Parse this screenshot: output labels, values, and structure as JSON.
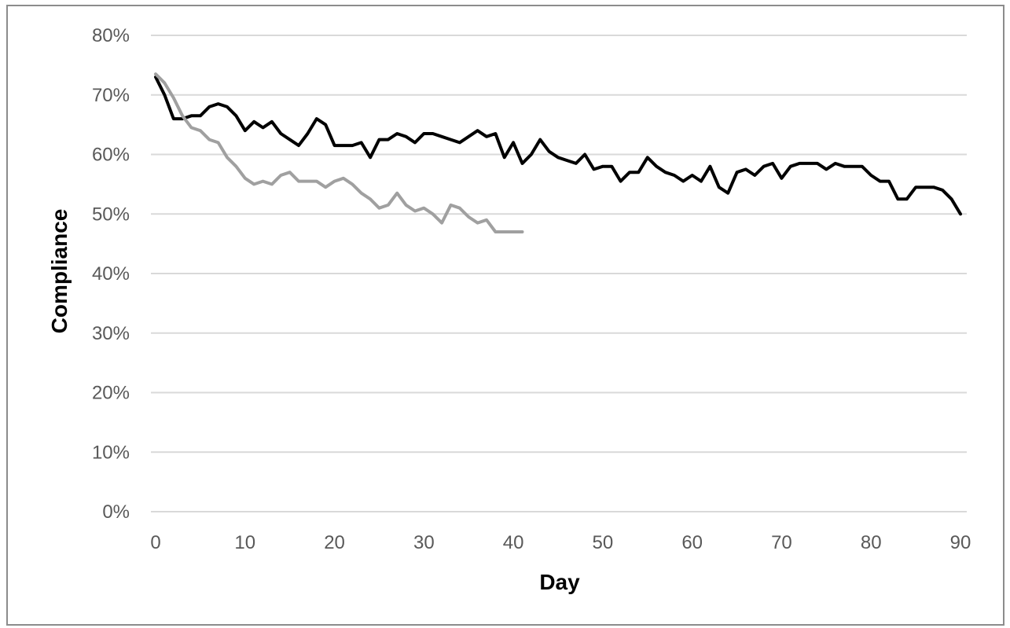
{
  "chart_data": {
    "type": "line",
    "title": "",
    "xlabel": "Day",
    "ylabel": "Compliance",
    "xlim": [
      0,
      90
    ],
    "ylim": [
      0,
      0.8
    ],
    "grid": "horizontal",
    "legend": "none",
    "x_ticks": [
      "0",
      "10",
      "20",
      "30",
      "40",
      "50",
      "60",
      "70",
      "80",
      "90"
    ],
    "y_ticks": [
      "0%",
      "10%",
      "20%",
      "30%",
      "40%",
      "50%",
      "60%",
      "70%",
      "80%"
    ],
    "series": [
      {
        "color": "#000000",
        "x": [
          0,
          1,
          2,
          3,
          4,
          5,
          6,
          7,
          8,
          9,
          10,
          11,
          12,
          13,
          14,
          15,
          16,
          17,
          18,
          19,
          20,
          21,
          22,
          23,
          24,
          25,
          26,
          27,
          28,
          29,
          30,
          31,
          32,
          33,
          34,
          35,
          36,
          37,
          38,
          39,
          40,
          41,
          42,
          43,
          44,
          45,
          46,
          47,
          48,
          49,
          50,
          51,
          52,
          53,
          54,
          55,
          56,
          57,
          58,
          59,
          60,
          61,
          62,
          63,
          64,
          65,
          66,
          67,
          68,
          69,
          70,
          71,
          72,
          73,
          74,
          75,
          76,
          77,
          78,
          79,
          80,
          81,
          82,
          83,
          84,
          85,
          86,
          87,
          88,
          89,
          90
        ],
        "y": [
          0.73,
          0.7,
          0.66,
          0.66,
          0.665,
          0.665,
          0.68,
          0.685,
          0.68,
          0.665,
          0.64,
          0.655,
          0.645,
          0.655,
          0.635,
          0.625,
          0.615,
          0.635,
          0.66,
          0.65,
          0.615,
          0.615,
          0.615,
          0.62,
          0.595,
          0.625,
          0.625,
          0.635,
          0.63,
          0.62,
          0.635,
          0.635,
          0.63,
          0.625,
          0.62,
          0.63,
          0.64,
          0.63,
          0.635,
          0.595,
          0.62,
          0.585,
          0.6,
          0.625,
          0.605,
          0.595,
          0.59,
          0.585,
          0.6,
          0.575,
          0.58,
          0.58,
          0.555,
          0.57,
          0.57,
          0.595,
          0.58,
          0.57,
          0.565,
          0.555,
          0.565,
          0.555,
          0.58,
          0.545,
          0.535,
          0.57,
          0.575,
          0.565,
          0.58,
          0.585,
          0.56,
          0.58,
          0.585,
          0.585,
          0.585,
          0.575,
          0.585,
          0.58,
          0.58,
          0.58,
          0.565,
          0.555,
          0.555,
          0.525,
          0.525,
          0.545,
          0.545,
          0.545,
          0.54,
          0.525,
          0.5
        ]
      },
      {
        "color": "#a0a0a0",
        "x": [
          0,
          1,
          2,
          3,
          4,
          5,
          6,
          7,
          8,
          9,
          10,
          11,
          12,
          13,
          14,
          15,
          16,
          17,
          18,
          19,
          20,
          21,
          22,
          23,
          24,
          25,
          26,
          27,
          28,
          29,
          30,
          31,
          32,
          33,
          34,
          35,
          36,
          37,
          38,
          39,
          40,
          41
        ],
        "y": [
          0.735,
          0.72,
          0.695,
          0.665,
          0.645,
          0.64,
          0.625,
          0.62,
          0.595,
          0.58,
          0.56,
          0.55,
          0.555,
          0.55,
          0.565,
          0.57,
          0.555,
          0.555,
          0.555,
          0.545,
          0.555,
          0.56,
          0.55,
          0.535,
          0.525,
          0.51,
          0.515,
          0.535,
          0.515,
          0.505,
          0.51,
          0.5,
          0.485,
          0.515,
          0.51,
          0.495,
          0.485,
          0.49,
          0.47,
          0.47,
          0.47,
          0.47
        ]
      }
    ]
  }
}
